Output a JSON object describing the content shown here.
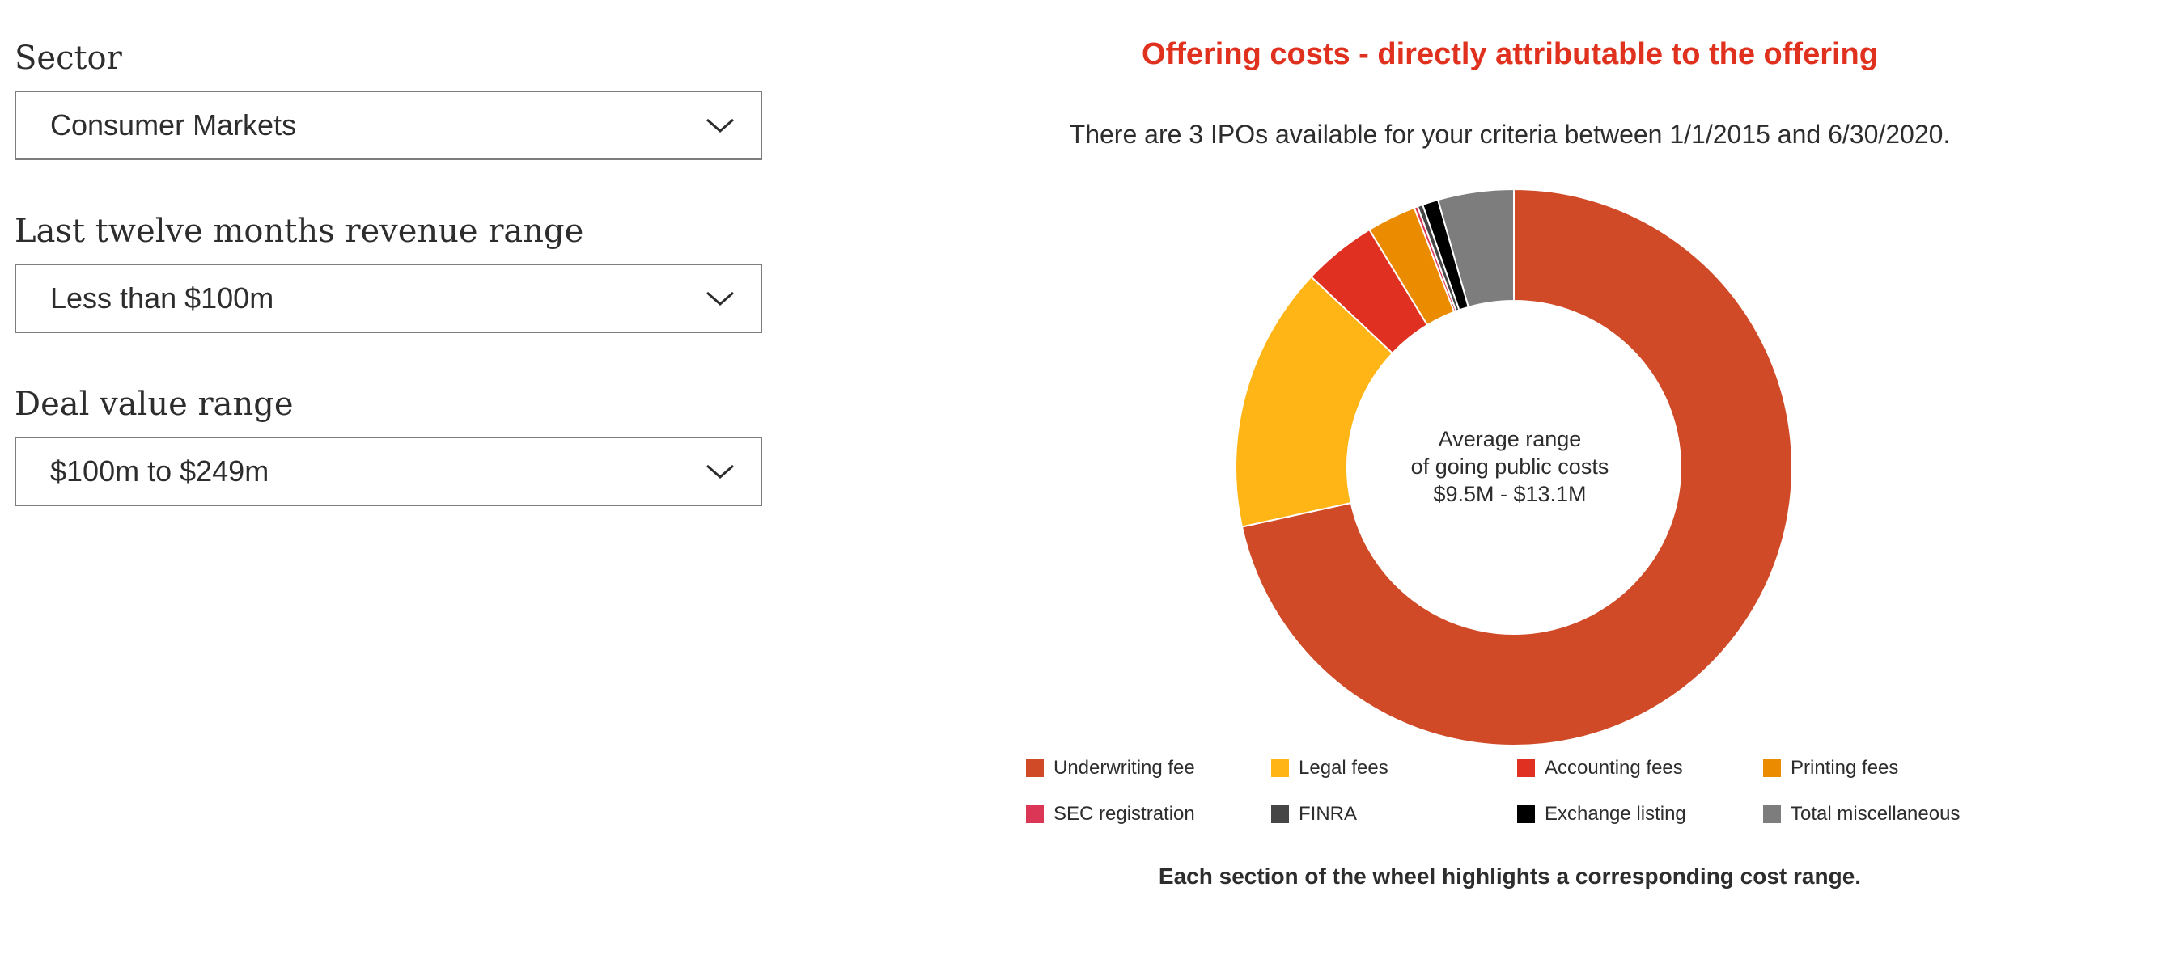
{
  "filters": {
    "sector": {
      "label": "Sector",
      "value": "Consumer Markets"
    },
    "revenue": {
      "label": "Last twelve months revenue range",
      "value": "Less than $100m"
    },
    "deal": {
      "label": "Deal value range",
      "value": "$100m to $249m"
    }
  },
  "chart_section": {
    "title": "Offering costs - directly attributable to the offering",
    "subtitle": "There are 3 IPOs available for your criteria between 1/1/2015 and 6/30/2020.",
    "center_line1": "Average range",
    "center_line2": "of going public costs",
    "center_line3": "$9.5M - $13.1M",
    "footer": "Each section of the wheel highlights a corresponding cost range."
  },
  "colors": {
    "accent": "#e0301e",
    "underwriting": "#d04a27",
    "legal": "#ffb515",
    "accounting": "#e03021",
    "printing": "#eb8c00",
    "sec": "#db3655",
    "finra": "#464646",
    "exchange": "#000000",
    "misc": "#7d7d7d"
  },
  "chart_data": {
    "type": "pie",
    "variant": "donut",
    "legend_position": "bottom",
    "series": [
      {
        "name": "Underwriting fee",
        "value": 70.0,
        "color": "#d04a27"
      },
      {
        "name": "Legal fees",
        "value": 15.1,
        "color": "#ffb515"
      },
      {
        "name": "Accounting fees",
        "value": 4.2,
        "color": "#e03021"
      },
      {
        "name": "Printing fees",
        "value": 2.8,
        "color": "#eb8c00"
      },
      {
        "name": "SEC registration",
        "value": 0.2,
        "color": "#db3655"
      },
      {
        "name": "FINRA",
        "value": 0.3,
        "color": "#464646"
      },
      {
        "name": "Exchange listing",
        "value": 0.9,
        "color": "#000000"
      },
      {
        "name": "Total miscellaneous",
        "value": 4.3,
        "color": "#7d7d7d"
      }
    ]
  }
}
